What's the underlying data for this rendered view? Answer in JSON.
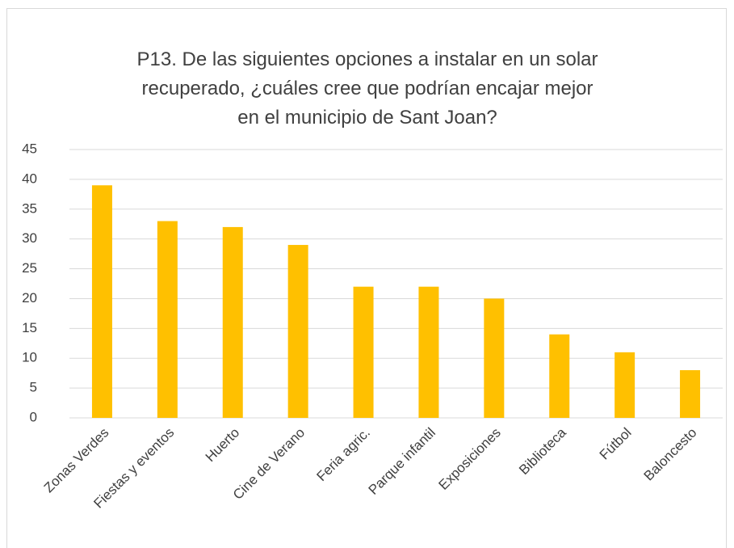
{
  "chart_data": {
    "type": "bar",
    "title": "P13. De las siguientes opciones a instalar en un solar recuperado, ¿cuáles cree que podrían encajar mejor en el municipio de Sant Joan?",
    "categories": [
      "Zonas Verdes",
      "Fiestas y eventos",
      "Huerto",
      "Cine de Verano",
      "Feria agric.",
      "Parque infantil",
      "Exposiciones",
      "Biblioteca",
      "Fútbol",
      "Baloncesto"
    ],
    "values": [
      39,
      33,
      32,
      29,
      22,
      22,
      20,
      14,
      11,
      8
    ],
    "color": "#ffc000",
    "ylim": [
      0,
      45
    ],
    "yticks": [
      0,
      5,
      10,
      15,
      20,
      25,
      30,
      35,
      40,
      45
    ],
    "grid": true
  }
}
